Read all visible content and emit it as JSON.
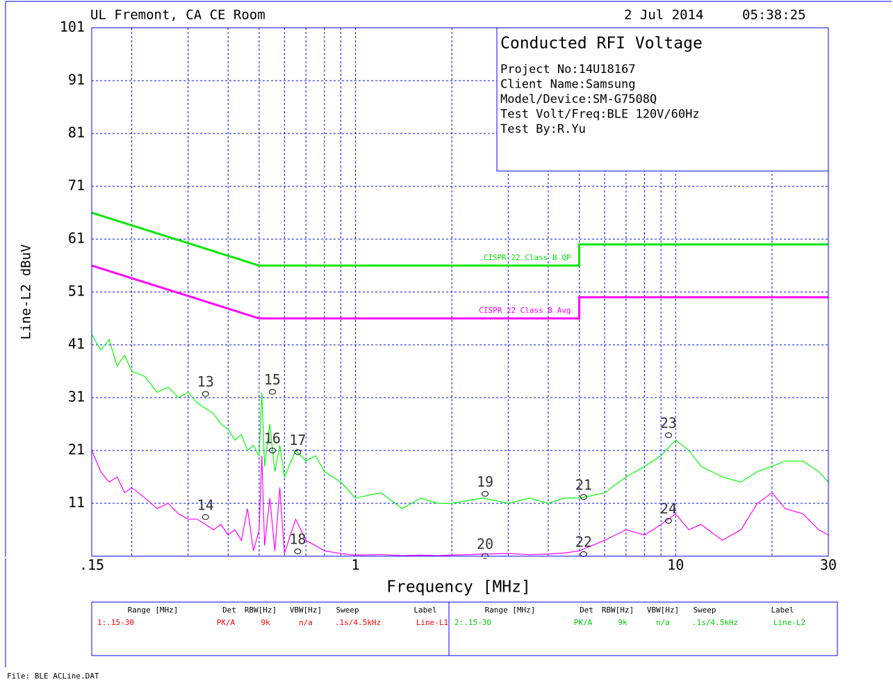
{
  "header": {
    "site": "UL Fremont, CA CE Room",
    "date": "2 Jul 2014",
    "time": "05:38:25"
  },
  "chart_data": {
    "type": "line",
    "title": "Conducted RFI Voltage",
    "info": [
      "Project No:14U18167",
      "Client Name:Samsung",
      "Model/Device:SM-G7508Q",
      "Test Volt/Freq:BLE 120V/60Hz",
      "Test By:R.Yu"
    ],
    "x_label": "Frequency [MHz]",
    "y_label": "Line-L2 dBuV",
    "log_x": true,
    "grid": true,
    "xlim": [
      0.15,
      30
    ],
    "ylim": [
      1,
      101
    ],
    "xticks": [
      {
        "value": 0.15,
        "label": ".15"
      },
      1,
      10,
      30
    ],
    "xminor": [
      0.2,
      0.3,
      0.4,
      0.5,
      0.6,
      0.7,
      0.8,
      0.9,
      2,
      3,
      4,
      5,
      6,
      7,
      8,
      9,
      20
    ],
    "yticks": [
      11,
      21,
      31,
      41,
      51,
      61,
      71,
      81,
      91,
      101
    ],
    "series": [
      {
        "name": "CISPR 22 Class B QP",
        "color": "#00e600",
        "width": 3,
        "x": [
          0.15,
          0.5,
          5,
          5,
          30
        ],
        "values": [
          66,
          56,
          56,
          60,
          60
        ]
      },
      {
        "name": "CISPR 22 Class B Avg",
        "color": "#ff00ff",
        "width": 3,
        "x": [
          0.15,
          0.5,
          5,
          5,
          30
        ],
        "values": [
          56,
          46,
          46,
          50,
          50
        ]
      },
      {
        "color": "#00ff00",
        "width": 1.2,
        "x": [
          0.15,
          0.16,
          0.17,
          0.18,
          0.19,
          0.2,
          0.22,
          0.24,
          0.26,
          0.28,
          0.3,
          0.32,
          0.34,
          0.36,
          0.38,
          0.4,
          0.42,
          0.44,
          0.46,
          0.48,
          0.5,
          0.51,
          0.52,
          0.54,
          0.56,
          0.58,
          0.6,
          0.65,
          0.7,
          0.75,
          0.8,
          0.9,
          1.0,
          1.2,
          1.4,
          1.6,
          1.8,
          2.0,
          2.5,
          3.0,
          3.5,
          4.0,
          4.5,
          5.0,
          6.0,
          7.0,
          8.0,
          9.0,
          10,
          11,
          12,
          14,
          16,
          18,
          20,
          22,
          25,
          28,
          30
        ],
        "values": [
          43,
          40,
          42,
          37,
          39,
          36,
          35,
          32,
          33,
          31,
          32,
          30,
          29,
          28,
          26,
          25,
          23,
          24,
          21,
          22,
          20,
          32,
          18,
          26,
          17,
          22,
          16,
          21,
          19,
          20,
          17,
          15,
          12,
          13,
          10,
          12,
          11,
          11,
          12,
          11,
          12,
          11,
          12,
          12,
          13,
          16,
          18,
          20,
          23,
          21,
          18,
          16,
          15,
          17,
          18,
          19,
          19,
          17,
          15
        ]
      },
      {
        "color": "#ff00ff",
        "width": 1.2,
        "x": [
          0.15,
          0.16,
          0.17,
          0.18,
          0.19,
          0.2,
          0.22,
          0.24,
          0.26,
          0.28,
          0.3,
          0.32,
          0.34,
          0.36,
          0.38,
          0.4,
          0.42,
          0.44,
          0.46,
          0.48,
          0.5,
          0.51,
          0.52,
          0.54,
          0.56,
          0.58,
          0.6,
          0.65,
          0.7,
          0.75,
          0.8,
          0.9,
          1.0,
          1.2,
          1.4,
          1.6,
          1.8,
          2.0,
          2.5,
          3.0,
          3.5,
          4.0,
          4.5,
          5.0,
          6.0,
          7.0,
          8.0,
          9.0,
          10,
          11,
          12,
          14,
          16,
          18,
          20,
          22,
          25,
          28,
          30
        ],
        "values": [
          21,
          17,
          15,
          16,
          13,
          14,
          12,
          10,
          11,
          9,
          8,
          8,
          7,
          6,
          7,
          5,
          6,
          4,
          10,
          2,
          6,
          20,
          3,
          12,
          2,
          14,
          1.5,
          8,
          4,
          3,
          2,
          1.5,
          1.2,
          1.3,
          1.1,
          1.2,
          1.1,
          1.2,
          1.4,
          1.5,
          1.3,
          1.4,
          1.6,
          2,
          4,
          6,
          5,
          7,
          9,
          6,
          7,
          4,
          6,
          11,
          13,
          10,
          9,
          6,
          5
        ]
      }
    ],
    "markers": {
      "labels": [
        "13",
        "14",
        "15",
        "16",
        "17",
        "18",
        "19",
        "20",
        "21",
        "22",
        "23",
        "24"
      ],
      "x": [
        0.34,
        0.34,
        0.55,
        0.55,
        0.66,
        0.66,
        2.54,
        2.54,
        5.16,
        5.16,
        9.5,
        9.5
      ],
      "y": [
        31.7,
        8.4,
        32.1,
        21,
        20.7,
        1.9,
        12.8,
        1,
        12.2,
        1.4,
        23.9,
        7.7
      ]
    }
  },
  "legend_table": {
    "columns": [
      "Range [MHz]",
      "Det",
      "RBW[Hz]",
      "VBW[Hz]",
      "Sweep",
      "Label"
    ],
    "rows": [
      [
        "1:.15-30",
        "PK/A",
        "9k",
        "n/a",
        ".1s/4.5kHz",
        "Line-L1"
      ],
      [
        "2:.15-30",
        "PK/A",
        "9k",
        "n/a",
        ".1s/4.5kHz",
        "Line-L2"
      ]
    ],
    "colors": [
      "#ff0000",
      "#00cc00"
    ]
  },
  "footer": "File: BLE ACLine.DAT"
}
